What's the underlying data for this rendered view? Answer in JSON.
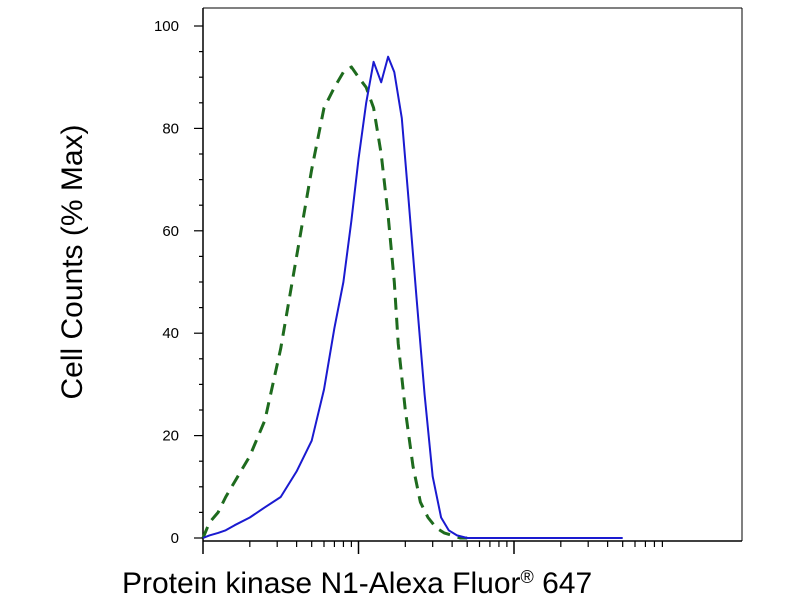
{
  "chart_data": {
    "type": "line",
    "title": "",
    "xlabel": "Protein kinase N1-Alexa Fluor",
    "xlabel_sup": "®",
    "xlabel_suffix": " 647",
    "ylabel": "Cell Counts (% Max)",
    "xscale": "log",
    "xlim": [
      10,
      5000
    ],
    "ylim": [
      0,
      100
    ],
    "yticks": [
      0,
      20,
      40,
      60,
      80,
      100
    ],
    "ytick_labels": [
      "0",
      "20",
      "40",
      "60",
      "80",
      "100"
    ],
    "grid": false,
    "legend": "none",
    "series": [
      {
        "style": "dashed",
        "color": "#1e6b1e",
        "x": [
          10,
          11,
          12.5,
          14,
          16,
          20,
          25,
          31.6,
          40,
          50,
          60,
          70,
          80,
          90,
          100,
          112,
          125,
          140,
          155,
          170,
          180,
          200,
          224,
          250,
          280,
          316,
          355,
          400,
          450,
          500
        ],
        "y": [
          0,
          3,
          5,
          8,
          11,
          16,
          23,
          37,
          55,
          72,
          84,
          88,
          91,
          92,
          90,
          88,
          84,
          75,
          63,
          50,
          38,
          25,
          14,
          7,
          4,
          2,
          1,
          0.5,
          0,
          0
        ]
      },
      {
        "style": "solid",
        "color": "#1a1ad0",
        "x": [
          10,
          11,
          12.5,
          14,
          16,
          20,
          25,
          31.6,
          40,
          50,
          60,
          70,
          80,
          90,
          100,
          112,
          125,
          140,
          155,
          170,
          190,
          210,
          236,
          266,
          300,
          340,
          380,
          430,
          500,
          600,
          800,
          1000,
          1500,
          2000,
          3000,
          5000
        ],
        "y": [
          0,
          0.5,
          1,
          1.5,
          2.5,
          4,
          6,
          8,
          13,
          19,
          29,
          41,
          50,
          62,
          74,
          85,
          93,
          89,
          94,
          91,
          82,
          66,
          47,
          28,
          12,
          4,
          1.5,
          0.5,
          0,
          0,
          0,
          0,
          0,
          0,
          0,
          0
        ]
      }
    ]
  }
}
